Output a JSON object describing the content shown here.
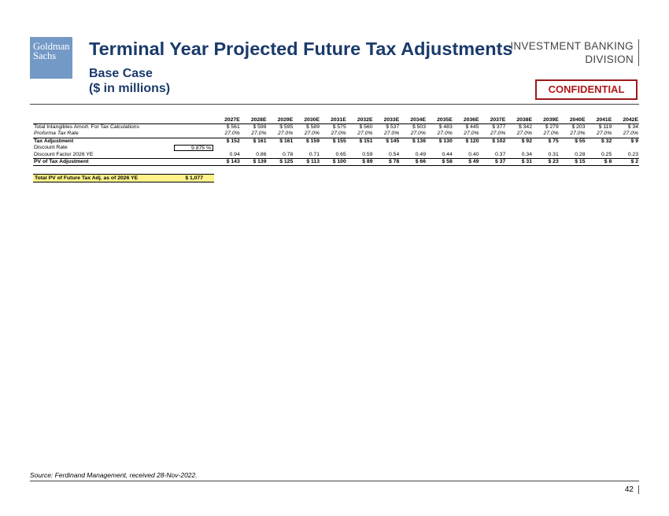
{
  "header": {
    "logo_line1": "Goldman",
    "logo_line2": "Sachs",
    "title": "Terminal Year Projected Future Tax Adjustments",
    "subtitle_line1": "Base Case",
    "subtitle_line2": "($ in millions)",
    "division_line1": "INVESTMENT BANKING",
    "division_line2": "DIVISION",
    "confidential": "CONFIDENTIAL"
  },
  "table": {
    "years": [
      "2027E",
      "2028E",
      "2029E",
      "2030E",
      "2031E",
      "2032E",
      "2033E",
      "2034E",
      "2035E",
      "2036E",
      "2037E",
      "2038E",
      "2039E",
      "2040E",
      "2041E",
      "2042E"
    ],
    "rows": {
      "amort": {
        "label": "Total Intangibles Amort. For Tax Calculations",
        "values": [
          "$ 561",
          "$ 598",
          "$ 595",
          "$ 589",
          "$ 575",
          "$ 560",
          "$ 537",
          "$ 503",
          "$ 483",
          "$ 445",
          "$ 377",
          "$ 342",
          "$ 279",
          "$ 203",
          "$ 119",
          "$ 34"
        ]
      },
      "taxrate": {
        "label": "Proforma Tax Rate",
        "values": [
          "27.0%",
          "27.0%",
          "27.0%",
          "27.0%",
          "27.0%",
          "27.0%",
          "27.0%",
          "27.0%",
          "27.0%",
          "27.0%",
          "27.0%",
          "27.0%",
          "27.0%",
          "27.0%",
          "27.0%",
          "27.0%"
        ]
      },
      "taxadj": {
        "label": "Tax Adjustment",
        "values": [
          "$ 152",
          "$ 161",
          "$ 161",
          "$ 159",
          "$ 155",
          "$ 151",
          "$ 145",
          "$ 136",
          "$ 130",
          "$ 120",
          "$ 102",
          "$ 92",
          "$ 75",
          "$ 55",
          "$ 32",
          "$ 9"
        ]
      },
      "discrate": {
        "label": "Discount Rate",
        "value": "9.875 %"
      },
      "discfactor": {
        "label": "Discount Factor 2026 YE",
        "values": [
          "0.94",
          "0.86",
          "0.78",
          "0.71",
          "0.65",
          "0.59",
          "0.54",
          "0.49",
          "0.44",
          "0.40",
          "0.37",
          "0.34",
          "0.31",
          "0.28",
          "0.25",
          "0.23"
        ]
      },
      "pv": {
        "label": "PV of Tax Adjustment",
        "values": [
          "$ 143",
          "$ 139",
          "$ 125",
          "$ 113",
          "$ 100",
          "$ 89",
          "$ 78",
          "$ 66",
          "$ 58",
          "$ 49",
          "$ 37",
          "$ 31",
          "$ 23",
          "$ 15",
          "$ 8",
          "$ 2"
        ]
      }
    },
    "total_label": "Total PV of Future Tax Adj. as of 2026 YE",
    "total_value": "$ 1,077"
  },
  "footer": {
    "source": "Source: Ferdinand Management, received 28-Nov-2022.",
    "page_number": "42"
  },
  "colors": {
    "title": "#1a3a6b",
    "logo": "#7399c6",
    "confidential": "#b01818",
    "highlight": "#fff38a"
  }
}
